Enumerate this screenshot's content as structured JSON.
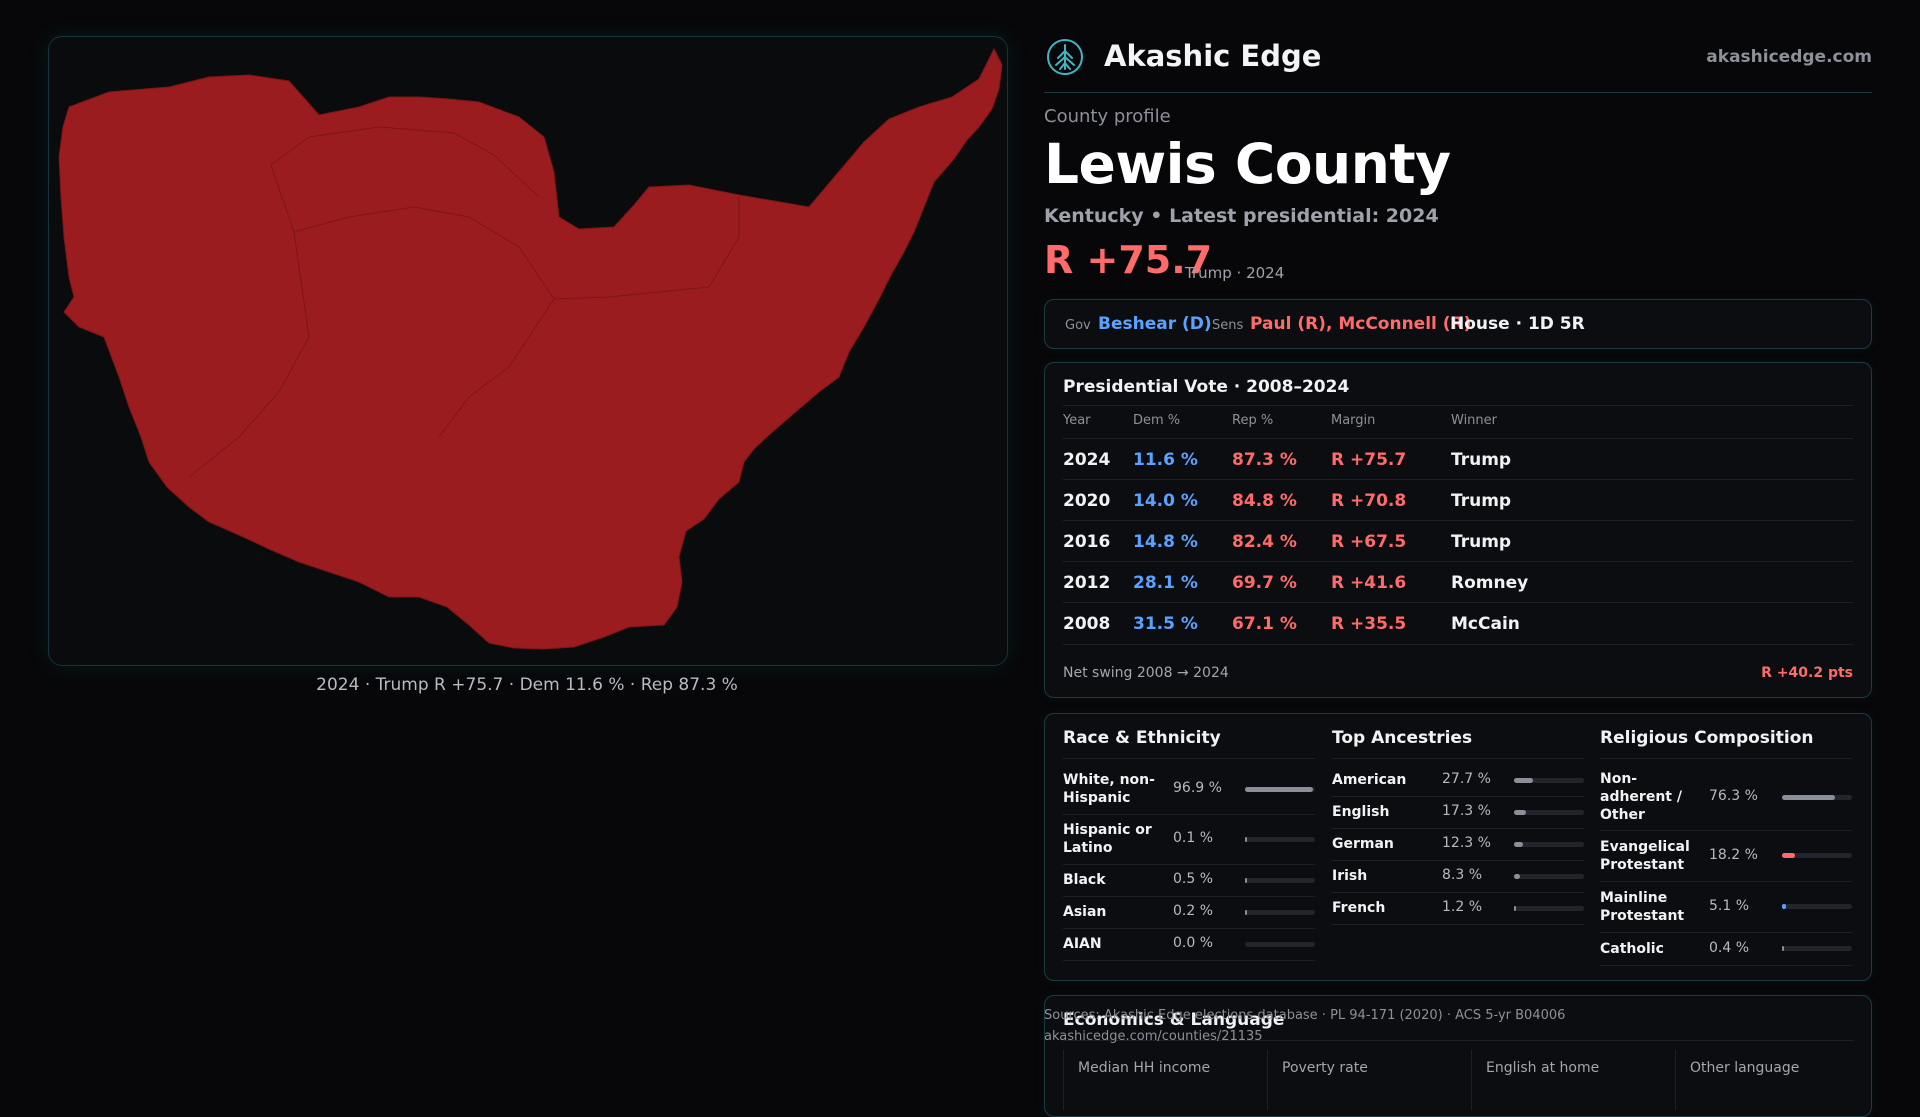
{
  "map": {
    "caption": "2024 · Trump R +75.7 · Dem 11.6 % · Rep 87.3 %",
    "fill_color": "#9b1c1f",
    "border_color": "#7d1517"
  },
  "header": {
    "brand": "Akashic Edge",
    "domain": "akashicedge.com",
    "logo_icon": "tree-logo-icon"
  },
  "profile": {
    "eyebrow": "County profile",
    "title": "Lewis County",
    "subtitle": "Kentucky • Latest presidential: 2024",
    "margin": "R +75.7",
    "margin_note": "Trump · 2024"
  },
  "officials": {
    "gov_label": "Gov",
    "gov_value": "Beshear (D)",
    "sens_label": "Sens",
    "sens_value": "Paul (R), McConnell (R)",
    "house": "House · 1D 5R"
  },
  "votes": {
    "title": "Presidential Vote · 2008–2024",
    "columns": [
      "Year",
      "Dem %",
      "Rep %",
      "Margin",
      "Winner"
    ],
    "rows": [
      {
        "year": "2024",
        "dem": "11.6 %",
        "rep": "87.3 %",
        "margin": "R +75.7",
        "winner": "Trump"
      },
      {
        "year": "2020",
        "dem": "14.0 %",
        "rep": "84.8 %",
        "margin": "R +70.8",
        "winner": "Trump"
      },
      {
        "year": "2016",
        "dem": "14.8 %",
        "rep": "82.4 %",
        "margin": "R +67.5",
        "winner": "Trump"
      },
      {
        "year": "2012",
        "dem": "28.1 %",
        "rep": "69.7 %",
        "margin": "R +41.6",
        "winner": "Romney"
      },
      {
        "year": "2008",
        "dem": "31.5 %",
        "rep": "67.1 %",
        "margin": "R +35.5",
        "winner": "McCain"
      }
    ],
    "swing_label": "Net swing 2008 → 2024",
    "swing_value": "R +40.2 pts"
  },
  "race": {
    "title": "Race & Ethnicity",
    "items": [
      {
        "label": "White, non-Hispanic",
        "pct": "96.9 %",
        "value": 96.9
      },
      {
        "label": "Hispanic or Latino",
        "pct": "0.1 %",
        "value": 0.1
      },
      {
        "label": "Black",
        "pct": "0.5 %",
        "value": 0.5
      },
      {
        "label": "Asian",
        "pct": "0.2 %",
        "value": 0.2
      },
      {
        "label": "AIAN",
        "pct": "0.0 %",
        "value": 0.0
      }
    ],
    "bar_color": "#8a8f99"
  },
  "ancestry": {
    "title": "Top Ancestries",
    "items": [
      {
        "label": "American",
        "pct": "27.7 %",
        "value": 27.7
      },
      {
        "label": "English",
        "pct": "17.3 %",
        "value": 17.3
      },
      {
        "label": "German",
        "pct": "12.3 %",
        "value": 12.3
      },
      {
        "label": "Irish",
        "pct": "8.3 %",
        "value": 8.3
      },
      {
        "label": "French",
        "pct": "1.2 %",
        "value": 1.2
      }
    ],
    "bar_color": "#8a8f99"
  },
  "religion": {
    "title": "Religious Composition",
    "items": [
      {
        "label": "Non-adherent / Other",
        "pct": "76.3 %",
        "value": 76.3,
        "color": "#8a8f99"
      },
      {
        "label": "Evangelical Protestant",
        "pct": "18.2 %",
        "value": 18.2,
        "color": "#ff6b6b"
      },
      {
        "label": "Mainline Protestant",
        "pct": "5.1 %",
        "value": 5.1,
        "color": "#5aa2ff"
      },
      {
        "label": "Catholic",
        "pct": "0.4 %",
        "value": 0.4,
        "color": "#8a8f99"
      }
    ]
  },
  "economics": {
    "title": "Economics & Language",
    "columns": [
      "Median HH income",
      "Poverty rate",
      "English at home",
      "Other language"
    ]
  },
  "sources": {
    "line1": "Sources: Akashic Edge elections database · PL 94-171 (2020) · ACS 5-yr B04006",
    "line2": "akashicedge.com/counties/21135"
  },
  "colors": {
    "dem": "#5aa2ff",
    "rep": "#ff6b6b",
    "accent_border": "#1d3a40"
  }
}
